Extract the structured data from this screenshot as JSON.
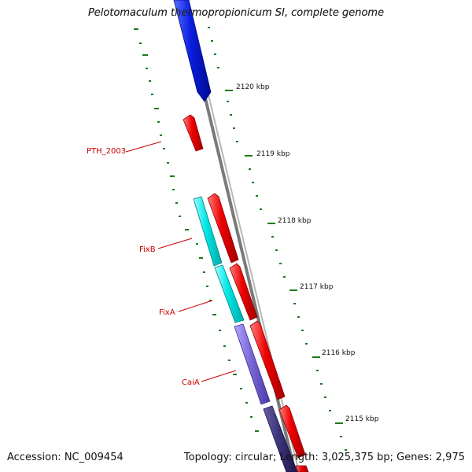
{
  "title": "Pelotomaculum thermopropionicum SI, complete genome",
  "footer": {
    "accession": "Accession: NC_009454",
    "topology": "Topology: circular; Length: 3,025,375 bp; Genes: 2,975"
  },
  "colors": {
    "forward_gene": "#0a1ee0",
    "reverse_gene": "#e80000",
    "fix_gene": "#00e6e6",
    "caia_gene": "#7a6ad8",
    "dark_gene": "#3c3478",
    "backbone": "#8a8a8a",
    "tick": "#1a7a1a",
    "label": "#cc0000"
  },
  "ticks": [
    {
      "label": "2120 kbp"
    },
    {
      "label": "2119 kbp"
    },
    {
      "label": "2118 kbp"
    },
    {
      "label": "2117 kbp"
    },
    {
      "label": "2116 kbp"
    },
    {
      "label": "2115 kbp"
    }
  ],
  "gene_labels": [
    {
      "label": "PTH_2003"
    },
    {
      "label": "FixB"
    },
    {
      "label": "FixA"
    },
    {
      "label": "CaiA"
    }
  ]
}
